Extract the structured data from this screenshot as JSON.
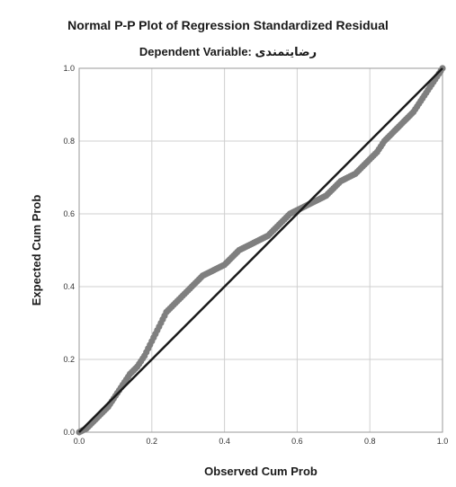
{
  "chart_data": {
    "type": "scatter",
    "title": "Normal P-P Plot of Regression Standardized Residual",
    "subtitle_prefix": "Dependent Variable:",
    "subtitle_variable": "رضایتمندی",
    "xlabel": "Observed Cum Prob",
    "ylabel": "Expected Cum Prob",
    "xlim": [
      0,
      1
    ],
    "ylim": [
      0,
      1
    ],
    "xticks": [
      "0.0",
      "0.2",
      "0.4",
      "0.6",
      "0.8",
      "1.0"
    ],
    "yticks": [
      "0.0",
      "0.2",
      "0.4",
      "0.6",
      "0.8",
      "1.0"
    ],
    "grid": true,
    "reference_line": [
      [
        0,
        0
      ],
      [
        1,
        1
      ]
    ],
    "point_color": "#7f7f7f",
    "line_color": "#1a1a1a",
    "points": [
      [
        0.0,
        0.0
      ],
      [
        0.02,
        0.01
      ],
      [
        0.04,
        0.03
      ],
      [
        0.06,
        0.05
      ],
      [
        0.08,
        0.07
      ],
      [
        0.1,
        0.1
      ],
      [
        0.12,
        0.13
      ],
      [
        0.14,
        0.16
      ],
      [
        0.16,
        0.18
      ],
      [
        0.18,
        0.21
      ],
      [
        0.2,
        0.25
      ],
      [
        0.22,
        0.29
      ],
      [
        0.24,
        0.33
      ],
      [
        0.26,
        0.35
      ],
      [
        0.28,
        0.37
      ],
      [
        0.3,
        0.39
      ],
      [
        0.32,
        0.41
      ],
      [
        0.34,
        0.43
      ],
      [
        0.36,
        0.44
      ],
      [
        0.38,
        0.45
      ],
      [
        0.4,
        0.46
      ],
      [
        0.42,
        0.48
      ],
      [
        0.44,
        0.5
      ],
      [
        0.46,
        0.51
      ],
      [
        0.48,
        0.52
      ],
      [
        0.5,
        0.53
      ],
      [
        0.52,
        0.54
      ],
      [
        0.54,
        0.56
      ],
      [
        0.56,
        0.58
      ],
      [
        0.58,
        0.6
      ],
      [
        0.6,
        0.61
      ],
      [
        0.62,
        0.62
      ],
      [
        0.64,
        0.63
      ],
      [
        0.66,
        0.64
      ],
      [
        0.68,
        0.65
      ],
      [
        0.7,
        0.67
      ],
      [
        0.72,
        0.69
      ],
      [
        0.74,
        0.7
      ],
      [
        0.76,
        0.71
      ],
      [
        0.78,
        0.73
      ],
      [
        0.8,
        0.75
      ],
      [
        0.82,
        0.77
      ],
      [
        0.84,
        0.8
      ],
      [
        0.86,
        0.82
      ],
      [
        0.88,
        0.84
      ],
      [
        0.9,
        0.86
      ],
      [
        0.92,
        0.88
      ],
      [
        0.94,
        0.91
      ],
      [
        0.96,
        0.94
      ],
      [
        0.98,
        0.97
      ],
      [
        1.0,
        1.0
      ]
    ]
  }
}
